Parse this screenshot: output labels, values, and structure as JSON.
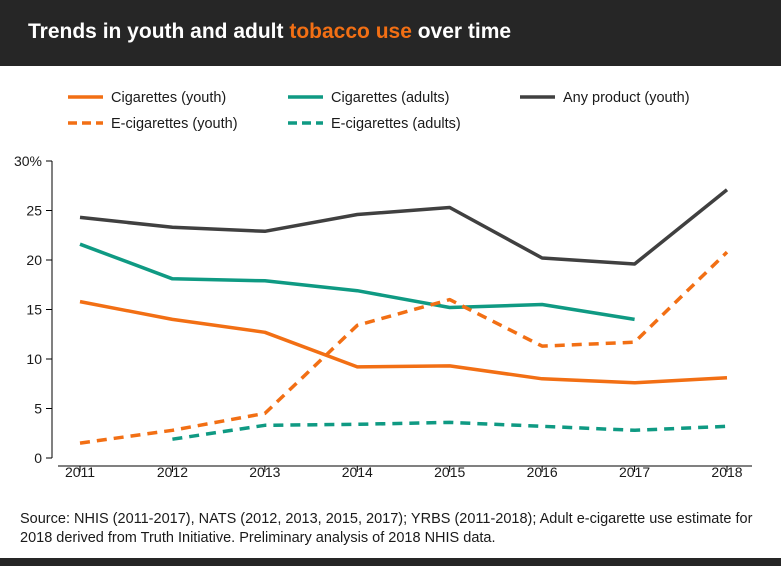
{
  "header": {
    "title_before": "Trends in youth and adult ",
    "title_highlight": "tobacco use",
    "title_after": " over time"
  },
  "source_note": "Source: NHIS (2011-2017), NATS (2012, 2013, 2015, 2017); YRBS (2011-2018); Adult e-cigarette use estimate for 2018 derived from Truth Initiative. Preliminary analysis of 2018 NHIS data.",
  "chart_data": {
    "type": "line",
    "title": "Trends in youth and adult tobacco use over time",
    "xlabel": "",
    "ylabel": "",
    "x": [
      2011,
      2012,
      2013,
      2014,
      2015,
      2016,
      2017,
      2018
    ],
    "ylim": [
      0,
      30
    ],
    "yticks": [
      0,
      5,
      10,
      15,
      20,
      25,
      30
    ],
    "ytick_labels": [
      "0",
      "5",
      "10",
      "15",
      "20",
      "25",
      "30%"
    ],
    "grid": false,
    "legend_position": "top",
    "series": [
      {
        "name": "Cigarettes (youth)",
        "color": "#f26f14",
        "dash": "solid",
        "values": [
          15.8,
          14.0,
          12.7,
          9.2,
          9.3,
          8.0,
          7.6,
          8.1
        ]
      },
      {
        "name": "Cigarettes (adults)",
        "color": "#0f9a83",
        "dash": "solid",
        "values": [
          21.6,
          18.1,
          17.9,
          16.9,
          15.2,
          15.5,
          14.0,
          null
        ]
      },
      {
        "name": "Any product (youth)",
        "color": "#404040",
        "dash": "solid",
        "values": [
          24.3,
          23.3,
          22.9,
          24.6,
          25.3,
          20.2,
          19.6,
          27.1
        ]
      },
      {
        "name": "E-cigarettes (youth)",
        "color": "#f26f14",
        "dash": "dashed",
        "values": [
          1.5,
          2.8,
          4.5,
          13.4,
          16.0,
          11.3,
          11.7,
          20.8
        ]
      },
      {
        "name": "E-cigarettes (adults)",
        "color": "#0f9a83",
        "dash": "dashed",
        "values": [
          null,
          1.9,
          3.3,
          3.4,
          3.6,
          3.2,
          2.8,
          3.2
        ]
      }
    ]
  }
}
